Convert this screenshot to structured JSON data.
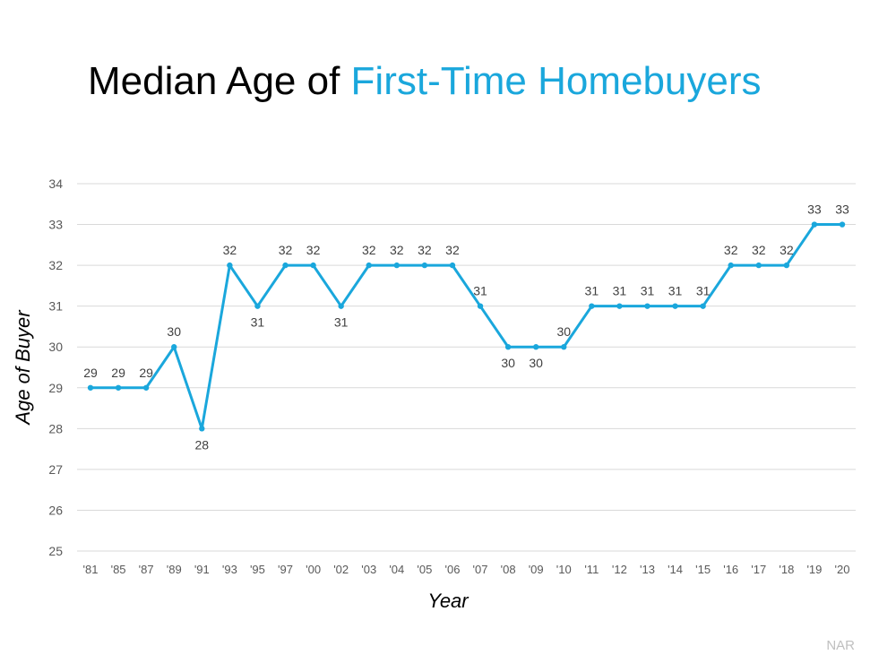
{
  "title": {
    "part1": "Median Age of ",
    "part2": "First-Time Homebuyers"
  },
  "source": "NAR",
  "colors": {
    "accent": "#1aa7dc",
    "grid": "#d9d9d9",
    "tick_text": "#595959"
  },
  "chart_data": {
    "type": "line",
    "xlabel": "Year",
    "ylabel": "Age of Buyer",
    "ylim": [
      25,
      34
    ],
    "yticks": [
      25,
      26,
      27,
      28,
      29,
      30,
      31,
      32,
      33,
      34
    ],
    "grid": true,
    "data_labels": true,
    "categories": [
      "'81",
      "'85",
      "'87",
      "'89",
      "'91",
      "'93",
      "'95",
      "'97",
      "'00",
      "'02",
      "'03",
      "'04",
      "'05",
      "'06",
      "'07",
      "'08",
      "'09",
      "'10",
      "'11",
      "'12",
      "'13",
      "'14",
      "'15",
      "'16",
      "'17",
      "'18",
      "'19",
      "'20"
    ],
    "series": [
      {
        "color": "#1aa7dc",
        "values": [
          29,
          29,
          29,
          30,
          28,
          32,
          31,
          32,
          32,
          31,
          32,
          32,
          32,
          32,
          31,
          30,
          30,
          30,
          31,
          31,
          31,
          31,
          31,
          32,
          32,
          32,
          33,
          33
        ]
      }
    ]
  }
}
